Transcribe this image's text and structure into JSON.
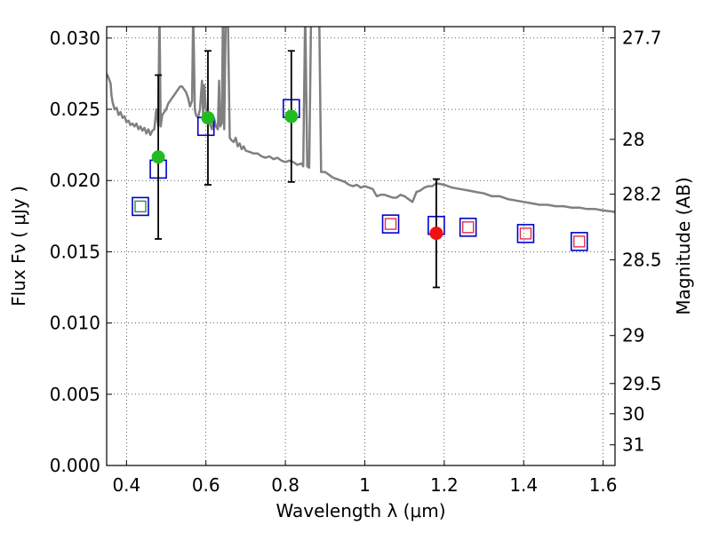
{
  "chart_data": {
    "type": "scatter",
    "xlabel": "Wavelength  λ (μm)",
    "ylabel": "Flux  Fν  ( μJy )",
    "ylabel_right": "Magnitude (AB)",
    "xlim": [
      0.35,
      1.63
    ],
    "ylim": [
      0.0,
      0.0308
    ],
    "x_ticks": [
      0.4,
      0.6,
      0.8,
      1.0,
      1.2,
      1.4,
      1.6
    ],
    "x_tick_labels": [
      "0.4",
      "0.6",
      "0.8",
      "1",
      "1.2",
      "1.4",
      "1.6"
    ],
    "y_ticks": [
      0.0,
      0.005,
      0.01,
      0.015,
      0.02,
      0.025,
      0.03
    ],
    "y_tick_labels": [
      "0.000",
      "0.005",
      "0.010",
      "0.015",
      "0.020",
      "0.025",
      "0.030"
    ],
    "right_ticks": [
      {
        "label": "27.7",
        "flux": 0.03001
      },
      {
        "label": "28",
        "flux": 0.02289
      },
      {
        "label": "28.2",
        "flux": 0.01904
      },
      {
        "label": "28.5",
        "flux": 0.01444
      },
      {
        "label": "29",
        "flux": 0.00912
      },
      {
        "label": "29.5",
        "flux": 0.00575
      },
      {
        "label": "30",
        "flux": 0.00363
      },
      {
        "label": "31",
        "flux": 0.00145
      }
    ],
    "grid": true,
    "colors": {
      "model": "#808080",
      "model_box": "#0000cc",
      "inner_green": "#2e8b3e",
      "inner_red": "#e0304a",
      "point_green": "#22bb22",
      "point_red": "#ee1111",
      "errorbar": "#000000"
    },
    "model_spectrum": {
      "name": "model SED",
      "points": [
        [
          0.35,
          0.0275
        ],
        [
          0.355,
          0.0272
        ],
        [
          0.36,
          0.0268
        ],
        [
          0.362,
          0.026
        ],
        [
          0.365,
          0.0255
        ],
        [
          0.37,
          0.025
        ],
        [
          0.375,
          0.0251
        ],
        [
          0.38,
          0.0246
        ],
        [
          0.385,
          0.0248
        ],
        [
          0.39,
          0.0244
        ],
        [
          0.395,
          0.0245
        ],
        [
          0.4,
          0.0241
        ],
        [
          0.405,
          0.0242
        ],
        [
          0.41,
          0.0239
        ],
        [
          0.415,
          0.024
        ],
        [
          0.42,
          0.0238
        ],
        [
          0.425,
          0.024
        ],
        [
          0.43,
          0.0236
        ],
        [
          0.435,
          0.0238
        ],
        [
          0.44,
          0.0235
        ],
        [
          0.445,
          0.0237
        ],
        [
          0.45,
          0.0233
        ],
        [
          0.455,
          0.0236
        ],
        [
          0.46,
          0.0232
        ],
        [
          0.465,
          0.0235
        ],
        [
          0.47,
          0.0236
        ],
        [
          0.475,
          0.025
        ],
        [
          0.48,
          0.0238
        ],
        [
          0.483,
          0.032
        ],
        [
          0.486,
          0.0238
        ],
        [
          0.49,
          0.0246
        ],
        [
          0.495,
          0.0248
        ],
        [
          0.5,
          0.025
        ],
        [
          0.505,
          0.0254
        ],
        [
          0.51,
          0.0256
        ],
        [
          0.515,
          0.0258
        ],
        [
          0.52,
          0.026
        ],
        [
          0.525,
          0.0262
        ],
        [
          0.53,
          0.0264
        ],
        [
          0.535,
          0.0266
        ],
        [
          0.54,
          0.0266
        ],
        [
          0.545,
          0.0264
        ],
        [
          0.55,
          0.0262
        ],
        [
          0.555,
          0.0258
        ],
        [
          0.56,
          0.0252
        ],
        [
          0.565,
          0.0256
        ],
        [
          0.568,
          0.032
        ],
        [
          0.572,
          0.025
        ],
        [
          0.575,
          0.0246
        ],
        [
          0.58,
          0.0244
        ],
        [
          0.585,
          0.025
        ],
        [
          0.59,
          0.027
        ],
        [
          0.593,
          0.0245
        ],
        [
          0.596,
          0.0267
        ],
        [
          0.6,
          0.025
        ],
        [
          0.605,
          0.0246
        ],
        [
          0.61,
          0.024
        ],
        [
          0.615,
          0.0236
        ],
        [
          0.62,
          0.0244
        ],
        [
          0.625,
          0.0238
        ],
        [
          0.63,
          0.0236
        ],
        [
          0.633,
          0.027
        ],
        [
          0.636,
          0.0238
        ],
        [
          0.64,
          0.024
        ],
        [
          0.643,
          0.032
        ],
        [
          0.646,
          0.0236
        ],
        [
          0.65,
          0.032
        ],
        [
          0.655,
          0.032
        ],
        [
          0.66,
          0.023
        ],
        [
          0.665,
          0.0228
        ],
        [
          0.67,
          0.0227
        ],
        [
          0.675,
          0.023
        ],
        [
          0.68,
          0.0224
        ],
        [
          0.685,
          0.0226
        ],
        [
          0.69,
          0.0222
        ],
        [
          0.695,
          0.0224
        ],
        [
          0.7,
          0.0221
        ],
        [
          0.71,
          0.022
        ],
        [
          0.72,
          0.0219
        ],
        [
          0.73,
          0.0219
        ],
        [
          0.74,
          0.0217
        ],
        [
          0.75,
          0.0216
        ],
        [
          0.76,
          0.0217
        ],
        [
          0.77,
          0.0215
        ],
        [
          0.78,
          0.0216
        ],
        [
          0.79,
          0.0214
        ],
        [
          0.8,
          0.0213
        ],
        [
          0.81,
          0.0214
        ],
        [
          0.82,
          0.0213
        ],
        [
          0.83,
          0.0211
        ],
        [
          0.84,
          0.0212
        ],
        [
          0.845,
          0.021
        ],
        [
          0.85,
          0.032
        ],
        [
          0.855,
          0.021
        ],
        [
          0.86,
          0.0209
        ],
        [
          0.865,
          0.032
        ],
        [
          0.87,
          0.032
        ],
        [
          0.875,
          0.032
        ],
        [
          0.88,
          0.032
        ],
        [
          0.885,
          0.032
        ],
        [
          0.89,
          0.0206
        ],
        [
          0.9,
          0.0206
        ],
        [
          0.91,
          0.0204
        ],
        [
          0.92,
          0.0202
        ],
        [
          0.93,
          0.0201
        ],
        [
          0.94,
          0.02
        ],
        [
          0.95,
          0.0199
        ],
        [
          0.96,
          0.0197
        ],
        [
          0.97,
          0.0196
        ],
        [
          0.98,
          0.0197
        ],
        [
          0.99,
          0.0195
        ],
        [
          1.0,
          0.0196
        ],
        [
          1.01,
          0.0195
        ],
        [
          1.02,
          0.0194
        ],
        [
          1.03,
          0.0189
        ],
        [
          1.04,
          0.019
        ],
        [
          1.05,
          0.019
        ],
        [
          1.06,
          0.0189
        ],
        [
          1.07,
          0.0188
        ],
        [
          1.08,
          0.0188
        ],
        [
          1.09,
          0.019
        ],
        [
          1.1,
          0.0189
        ],
        [
          1.11,
          0.0187
        ],
        [
          1.12,
          0.0185
        ],
        [
          1.13,
          0.0192
        ],
        [
          1.14,
          0.0193
        ],
        [
          1.15,
          0.0195
        ],
        [
          1.16,
          0.0196
        ],
        [
          1.17,
          0.0196
        ],
        [
          1.18,
          0.0198
        ],
        [
          1.2,
          0.0197
        ],
        [
          1.22,
          0.0195
        ],
        [
          1.24,
          0.0194
        ],
        [
          1.26,
          0.0193
        ],
        [
          1.28,
          0.0192
        ],
        [
          1.3,
          0.0191
        ],
        [
          1.32,
          0.0189
        ],
        [
          1.34,
          0.0189
        ],
        [
          1.36,
          0.0187
        ],
        [
          1.38,
          0.0186
        ],
        [
          1.4,
          0.0185
        ],
        [
          1.42,
          0.0184
        ],
        [
          1.44,
          0.0183
        ],
        [
          1.46,
          0.0183
        ],
        [
          1.48,
          0.0182
        ],
        [
          1.5,
          0.0182
        ],
        [
          1.52,
          0.0181
        ],
        [
          1.54,
          0.0181
        ],
        [
          1.56,
          0.018
        ],
        [
          1.58,
          0.018
        ],
        [
          1.6,
          0.0179
        ],
        [
          1.63,
          0.0178
        ]
      ]
    },
    "synthetic_boxes": [
      {
        "x": 0.435,
        "y": 0.01818,
        "inner": "green"
      },
      {
        "x": 0.48,
        "y": 0.0208,
        "inner": "none"
      },
      {
        "x": 0.6,
        "y": 0.0238,
        "inner": "none"
      },
      {
        "x": 0.815,
        "y": 0.02505,
        "inner": "none"
      },
      {
        "x": 1.065,
        "y": 0.01695,
        "inner": "red"
      },
      {
        "x": 1.18,
        "y": 0.01685,
        "inner": "none"
      },
      {
        "x": 1.26,
        "y": 0.01672,
        "inner": "red"
      },
      {
        "x": 1.405,
        "y": 0.01628,
        "inner": "red"
      },
      {
        "x": 1.54,
        "y": 0.01572,
        "inner": "red"
      }
    ],
    "observed_points": [
      {
        "x": 0.48,
        "y": 0.02165,
        "yerr_low": 0.0159,
        "yerr_high": 0.0274,
        "color": "green"
      },
      {
        "x": 0.605,
        "y": 0.0244,
        "yerr_low": 0.0197,
        "yerr_high": 0.0291,
        "color": "green"
      },
      {
        "x": 0.815,
        "y": 0.0245,
        "yerr_low": 0.0199,
        "yerr_high": 0.0291,
        "color": "green"
      },
      {
        "x": 1.18,
        "y": 0.0163,
        "yerr_low": 0.0125,
        "yerr_high": 0.0201,
        "color": "red"
      }
    ]
  }
}
